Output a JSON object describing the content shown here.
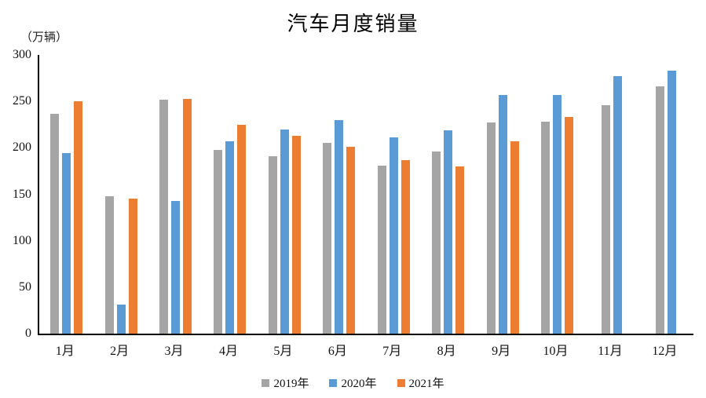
{
  "chart_data": {
    "type": "bar",
    "title": "汽车月度销量",
    "unit_label": "（万辆）",
    "categories": [
      "1月",
      "2月",
      "3月",
      "4月",
      "5月",
      "6月",
      "7月",
      "8月",
      "9月",
      "10月",
      "11月",
      "12月"
    ],
    "series": [
      {
        "name": "2019年",
        "color": "#A5A5A5",
        "values": [
          236.7,
          148.2,
          252.0,
          198.0,
          191.3,
          205.7,
          180.8,
          195.8,
          227.1,
          228.4,
          245.7,
          265.8
        ]
      },
      {
        "name": "2020年",
        "color": "#5B9BD5",
        "values": [
          194.1,
          31.0,
          143.0,
          207.0,
          219.4,
          230.0,
          211.2,
          218.6,
          256.5,
          257.3,
          277.0,
          283.1
        ]
      },
      {
        "name": "2021年",
        "color": "#ED7D31",
        "values": [
          250.3,
          145.5,
          252.6,
          225.2,
          212.8,
          201.5,
          186.4,
          179.9,
          206.7,
          233.3,
          null,
          null
        ]
      }
    ],
    "ylim": [
      0,
      300
    ],
    "ytick_step": 50,
    "yticks": [
      "0",
      "50",
      "100",
      "150",
      "200",
      "250",
      "300"
    ],
    "grid": false,
    "legend_position": "bottom-center",
    "axis_color": "#000000",
    "background": "#FFFFFF"
  }
}
